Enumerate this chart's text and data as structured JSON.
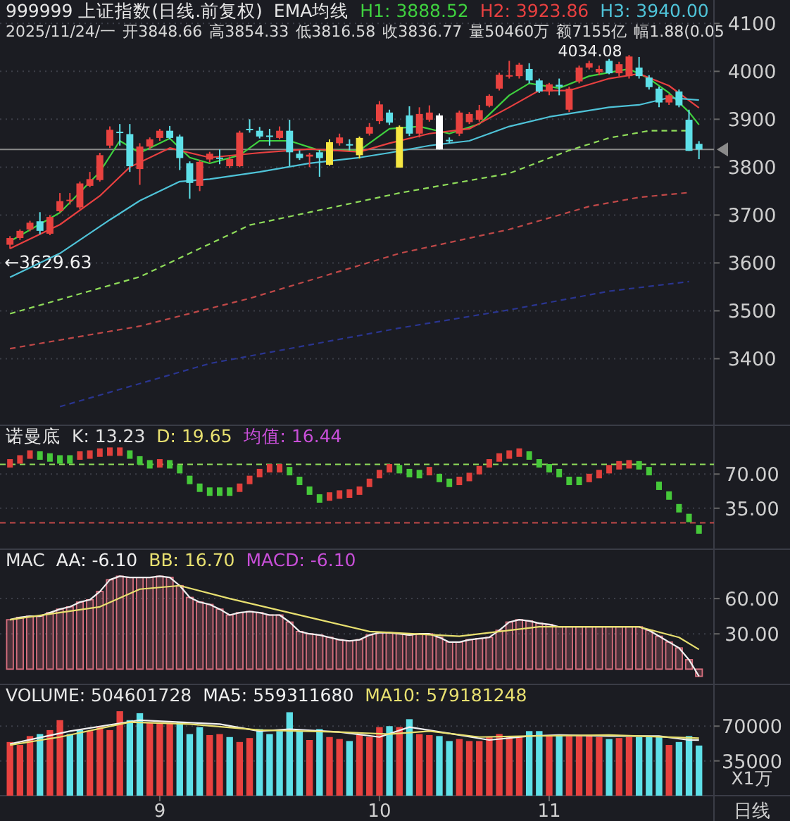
{
  "chart_data": [
    {
      "type": "candlestick",
      "title": "999999 上证指数(日线.前复权)",
      "subtitle": "EMA均线",
      "categories": [
        null,
        null,
        null,
        null,
        null,
        null,
        null,
        null,
        null,
        null,
        null,
        null,
        null,
        null,
        null,
        null,
        null,
        null,
        null,
        null,
        null,
        null,
        null,
        null,
        null,
        null,
        null,
        null,
        null,
        null,
        null,
        null,
        null,
        null,
        null,
        null,
        null,
        null,
        null,
        null,
        null,
        null,
        null,
        null,
        null,
        null,
        null,
        null,
        null,
        null,
        null,
        null,
        null,
        null,
        null,
        null,
        null,
        null,
        null,
        null,
        null,
        null,
        null,
        null,
        null,
        null,
        null,
        null,
        null,
        null
      ],
      "ohlc": [
        [
          3638,
          3656,
          3629.63,
          3652
        ],
        [
          3652,
          3670,
          3648,
          3667
        ],
        [
          3670,
          3688,
          3666,
          3684
        ],
        [
          3687,
          3706,
          3660,
          3667
        ],
        [
          3661,
          3700,
          3658,
          3696
        ],
        [
          3708,
          3746,
          3705,
          3729
        ],
        [
          3730,
          3746,
          3722,
          3732
        ],
        [
          3716,
          3770,
          3712,
          3766
        ],
        [
          3761,
          3790,
          3758,
          3775
        ],
        [
          3773,
          3830,
          3770,
          3825
        ],
        [
          3845,
          3885,
          3840,
          3878
        ],
        [
          3874,
          3890,
          3845,
          3872
        ],
        [
          3869,
          3890,
          3790,
          3802
        ],
        [
          3796,
          3850,
          3763,
          3843
        ],
        [
          3843,
          3862,
          3838,
          3858
        ],
        [
          3861,
          3880,
          3855,
          3876
        ],
        [
          3876,
          3886,
          3858,
          3861
        ],
        [
          3864,
          3868,
          3794,
          3819
        ],
        [
          3808,
          3812,
          3734,
          3767
        ],
        [
          3761,
          3815,
          3750,
          3811
        ],
        [
          3816,
          3832,
          3810,
          3828
        ],
        [
          3820,
          3837,
          3806,
          3819
        ],
        [
          3802,
          3822,
          3798,
          3817
        ],
        [
          3802,
          3876,
          3800,
          3872
        ],
        [
          3880,
          3900,
          3872,
          3878
        ],
        [
          3876,
          3884,
          3860,
          3864
        ],
        [
          3866,
          3880,
          3845,
          3864
        ],
        [
          3861,
          3885,
          3858,
          3876
        ],
        [
          3876,
          3899,
          3802,
          3831
        ],
        [
          3828,
          3835,
          3815,
          3819
        ],
        [
          3822,
          3830,
          3800,
          3826
        ],
        [
          3831,
          3836,
          3780,
          3819
        ],
        [
          3805,
          3858,
          3803,
          3852
        ],
        [
          3850,
          3870,
          3845,
          3862
        ],
        [
          3846,
          3858,
          3835,
          3848
        ],
        [
          3825,
          3864,
          3818,
          3861
        ],
        [
          3870,
          3892,
          3866,
          3884
        ],
        [
          3896,
          3938,
          3890,
          3931
        ],
        [
          3914,
          3920,
          3888,
          3893
        ],
        [
          3884,
          3887,
          3799,
          3799
        ],
        [
          3908,
          3927,
          3865,
          3870
        ],
        [
          3870,
          3925,
          3862,
          3911
        ],
        [
          3899,
          3929,
          3895,
          3914
        ],
        [
          3908,
          3912,
          3837,
          3837
        ],
        [
          3857,
          3862,
          3850,
          3855
        ],
        [
          3870,
          3918,
          3865,
          3914
        ],
        [
          3894,
          3915,
          3890,
          3911
        ],
        [
          3899,
          3930,
          3895,
          3919
        ],
        [
          3928,
          3952,
          3925,
          3949
        ],
        [
          3964,
          3997,
          3960,
          3993
        ],
        [
          3990,
          4022,
          3985,
          3992
        ],
        [
          3990,
          4018,
          3985,
          4014
        ],
        [
          4005,
          4017,
          3975,
          3981
        ],
        [
          3981,
          3985,
          3955,
          3958
        ],
        [
          3958,
          3976,
          3950,
          3973
        ],
        [
          3972,
          3985,
          3950,
          3968
        ],
        [
          3920,
          3968,
          3915,
          3964
        ],
        [
          3979,
          4012,
          3975,
          4008
        ],
        [
          4008,
          4022,
          4004,
          4017
        ],
        [
          3998,
          4012,
          3992,
          4005
        ],
        [
          4022,
          4026,
          3994,
          3996
        ],
        [
          3996,
          4020,
          3990,
          4015
        ],
        [
          3990,
          4034.08,
          3985,
          4031
        ],
        [
          4008,
          4030,
          3985,
          3990
        ],
        [
          3987,
          3992,
          3962,
          3967
        ],
        [
          3964,
          3968,
          3925,
          3935
        ],
        [
          3935,
          3952,
          3930,
          3950
        ],
        [
          3958,
          3962,
          3925,
          3929
        ],
        [
          3899,
          3920,
          3834,
          3834
        ],
        [
          3848.66,
          3854.33,
          3816.58,
          3836.77
        ]
      ],
      "colors": [
        "#e8423f",
        "#e8423f",
        "#e8423f",
        "#5ee0e8",
        "#e8423f",
        "#e8423f",
        "#e8423f",
        "#e8423f",
        "#e8423f",
        "#e8423f",
        "#e8423f",
        "#5ee0e8",
        "#5ee0e8",
        "#e8423f",
        "#e8423f",
        "#e8423f",
        "#5ee0e8",
        "#5ee0e8",
        "#5ee0e8",
        "#e8423f",
        "#e8423f",
        "#5ee0e8",
        "#e8423f",
        "#e8423f",
        "#5ee0e8",
        "#5ee0e8",
        "#5ee0e8",
        "#e8423f",
        "#5ee0e8",
        "#5ee0e8",
        "#e8423f",
        "#5ee0e8",
        "#f5e642",
        "#e8423f",
        "#5ee0e8",
        "#f5e642",
        "#e8423f",
        "#e8423f",
        "#5ee0e8",
        "#f5e642",
        "#5ee0e8",
        "#e8423f",
        "#e8423f",
        "#ffffff",
        "#5ee0e8",
        "#e8423f",
        "#e8423f",
        "#e8423f",
        "#e8423f",
        "#e8423f",
        "#e8423f",
        "#e8423f",
        "#5ee0e8",
        "#5ee0e8",
        "#e8423f",
        "#5ee0e8",
        "#e8423f",
        "#e8423f",
        "#e8423f",
        "#e8423f",
        "#5ee0e8",
        "#e8423f",
        "#e8423f",
        "#5ee0e8",
        "#5ee0e8",
        "#5ee0e8",
        "#e8423f",
        "#5ee0e8",
        "#5ee0e8",
        "#5ee0e8"
      ],
      "series": [
        {
          "name": "H1: 3888.52",
          "type": "line",
          "color": "#3fd13f",
          "values": [
            3645,
            null,
            null,
            null,
            null,
            3705,
            null,
            null,
            null,
            3790,
            null,
            3855,
            null,
            3830,
            null,
            null,
            3860,
            null,
            3820,
            null,
            3808,
            null,
            null,
            3825,
            null,
            3855,
            null,
            null,
            3855,
            null,
            null,
            3835,
            null,
            null,
            null,
            3835,
            null,
            null,
            3880,
            null,
            null,
            3885,
            null,
            null,
            3870,
            null,
            null,
            3890,
            null,
            null,
            3950,
            null,
            3975,
            null,
            null,
            3965,
            null,
            null,
            3990,
            null,
            null,
            null,
            4005,
            null,
            3985,
            null,
            3955,
            null,
            3915,
            3888.52
          ]
        },
        {
          "name": "H2: 3923.86",
          "type": "line",
          "color": "#e84040",
          "values": [
            3630,
            null,
            null,
            null,
            null,
            3680,
            null,
            null,
            null,
            3740,
            null,
            null,
            3800,
            null,
            null,
            null,
            3840,
            null,
            null,
            null,
            3820,
            null,
            null,
            null,
            null,
            3830,
            null,
            null,
            null,
            null,
            3838,
            null,
            null,
            null,
            null,
            3832,
            null,
            null,
            3850,
            null,
            null,
            null,
            3870,
            null,
            null,
            null,
            3880,
            null,
            null,
            null,
            3925,
            null,
            null,
            3960,
            null,
            null,
            3960,
            null,
            null,
            null,
            3985,
            null,
            null,
            3995,
            null,
            null,
            3970,
            null,
            null,
            3923.86
          ]
        },
        {
          "name": "H3: 3940.00",
          "type": "line",
          "color": "#4fc3d8",
          "values": [
            3570,
            null,
            null,
            null,
            null,
            3620,
            null,
            null,
            null,
            null,
            3690,
            null,
            null,
            3730,
            null,
            null,
            null,
            3770,
            null,
            null,
            3775,
            null,
            null,
            null,
            null,
            3790,
            null,
            null,
            null,
            null,
            3808,
            null,
            null,
            null,
            null,
            3820,
            null,
            null,
            3830,
            null,
            null,
            null,
            3845,
            null,
            null,
            null,
            3855,
            null,
            null,
            null,
            3885,
            null,
            null,
            null,
            3905,
            null,
            null,
            null,
            null,
            null,
            3925,
            null,
            null,
            3930,
            null,
            null,
            3945,
            null,
            null,
            3940.0
          ]
        },
        {
          "type": "line",
          "color": "#8fdc5a",
          "line_style": "dashed",
          "values": [
            3494,
            null,
            null,
            null,
            null,
            null,
            null,
            null,
            null,
            null,
            null,
            null,
            null,
            3571,
            null,
            null,
            null,
            null,
            null,
            null,
            null,
            null,
            null,
            null,
            3679,
            null,
            null,
            null,
            null,
            null,
            null,
            null,
            null,
            null,
            null,
            null,
            null,
            null,
            null,
            3746,
            null,
            null,
            null,
            null,
            null,
            null,
            null,
            null,
            null,
            null,
            3787,
            null,
            null,
            null,
            null,
            null,
            3835,
            null,
            null,
            null,
            3861,
            null,
            null,
            null,
            3876,
            null,
            null,
            null,
            3876,
            null
          ]
        },
        {
          "type": "line",
          "color": "#c04848",
          "line_style": "dashed",
          "values": [
            3421,
            null,
            null,
            null,
            null,
            null,
            null,
            null,
            null,
            null,
            null,
            null,
            null,
            3468,
            null,
            null,
            null,
            null,
            null,
            null,
            null,
            null,
            null,
            null,
            3526,
            null,
            null,
            null,
            null,
            null,
            null,
            null,
            null,
            null,
            null,
            null,
            null,
            null,
            null,
            3620,
            null,
            null,
            null,
            null,
            null,
            null,
            null,
            null,
            null,
            null,
            3670,
            null,
            null,
            null,
            null,
            null,
            null,
            null,
            3718,
            null,
            null,
            null,
            null,
            3737,
            null,
            null,
            null,
            null,
            3747,
            null
          ]
        },
        {
          "type": "line",
          "color": "#2a3590",
          "line_style": "dashed",
          "values": [
            null,
            null,
            null,
            null,
            null,
            3300,
            null,
            null,
            null,
            null,
            null,
            null,
            null,
            null,
            null,
            null,
            null,
            null,
            null,
            null,
            3390,
            null,
            null,
            null,
            null,
            null,
            null,
            null,
            null,
            null,
            null,
            null,
            null,
            null,
            null,
            null,
            null,
            null,
            null,
            3464,
            null,
            null,
            null,
            null,
            null,
            null,
            null,
            null,
            null,
            null,
            3502,
            null,
            null,
            null,
            null,
            null,
            null,
            null,
            null,
            null,
            3541,
            null,
            null,
            null,
            null,
            null,
            null,
            null,
            3561,
            null
          ]
        }
      ],
      "annotations": [
        "2025/11/24/一",
        "开3848.66",
        "高3854.33",
        "低3816.58",
        "收3836.77",
        "量50460万",
        "额7155亿",
        "幅1.88(0.05",
        "4034.08",
        "←3629.63"
      ],
      "ref_lines": [
        {
          "axis": "y",
          "value": 3836.77,
          "color": "#8a8a8a"
        }
      ],
      "ylim": [
        3261,
        4149
      ],
      "yticks": [
        3400,
        3500,
        3600,
        3700,
        3800,
        3900,
        4000,
        4100
      ],
      "grid": "y",
      "tick_labels": "y"
    },
    {
      "type": "scatter",
      "title": "诺曼底",
      "marker": "square",
      "categories": [
        null,
        null,
        null,
        null,
        null,
        null,
        null,
        null,
        null,
        null,
        null,
        null,
        null,
        null,
        null,
        null,
        null,
        null,
        null,
        null,
        null,
        null,
        null,
        null,
        null,
        null,
        null,
        null,
        null,
        null,
        null,
        null,
        null,
        null,
        null,
        null,
        null,
        null,
        null,
        null,
        null,
        null,
        null,
        null,
        null,
        null,
        null,
        null,
        null,
        null,
        null,
        null,
        null,
        null,
        null,
        null,
        null,
        null,
        null,
        null,
        null,
        null,
        null,
        null,
        null,
        null,
        null,
        null,
        null,
        null
      ],
      "values": [
        81,
        85,
        90,
        89,
        87,
        85,
        85,
        89,
        90,
        92,
        93,
        93,
        90,
        84,
        80,
        81,
        80,
        75,
        64,
        56,
        52,
        52,
        52,
        56,
        64,
        71,
        76,
        76,
        73,
        63,
        53,
        45,
        47,
        49,
        50,
        53,
        61,
        70,
        76,
        75,
        71,
        70,
        73,
        66,
        61,
        63,
        67,
        74,
        81,
        87,
        90,
        92,
        89,
        81,
        76,
        71,
        63,
        63,
        66,
        70,
        75,
        79,
        80,
        79,
        73,
        58,
        48,
        35,
        25,
        13.23
      ],
      "colors": [
        "#e0403c",
        "#e0403c",
        "#e0403c",
        "#46c83a",
        "#46c83a",
        "#46c83a",
        "#46c83a",
        "#e0403c",
        "#e0403c",
        "#e0403c",
        "#e0403c",
        "#e0403c",
        "#46c83a",
        "#46c83a",
        "#46c83a",
        "#e0403c",
        "#46c83a",
        "#46c83a",
        "#46c83a",
        "#46c83a",
        "#46c83a",
        "#46c83a",
        "#46c83a",
        "#e0403c",
        "#e0403c",
        "#e0403c",
        "#e0403c",
        "#e0403c",
        "#46c83a",
        "#46c83a",
        "#46c83a",
        "#46c83a",
        "#e0403c",
        "#e0403c",
        "#e0403c",
        "#e0403c",
        "#e0403c",
        "#e0403c",
        "#e0403c",
        "#46c83a",
        "#46c83a",
        "#46c83a",
        "#e0403c",
        "#46c83a",
        "#46c83a",
        "#e0403c",
        "#e0403c",
        "#e0403c",
        "#e0403c",
        "#e0403c",
        "#e0403c",
        "#e0403c",
        "#46c83a",
        "#46c83a",
        "#46c83a",
        "#46c83a",
        "#46c83a",
        "#46c83a",
        "#e0403c",
        "#e0403c",
        "#e0403c",
        "#e0403c",
        "#e0403c",
        "#46c83a",
        "#46c83a",
        "#46c83a",
        "#46c83a",
        "#46c83a",
        "#46c83a",
        "#46c83a"
      ],
      "annotations": [
        "K: 13.23",
        "D: 19.65",
        "均值: 16.44"
      ],
      "ref_lines": [
        {
          "axis": "y",
          "value": 80,
          "color": "#8fdc5a",
          "line_style": "dashed"
        },
        {
          "axis": "y",
          "value": 20,
          "color": "#c04848",
          "line_style": "dashed"
        }
      ],
      "ylim": [
        -7,
        120
      ],
      "yticks": [
        {
          "value": 70,
          "label": "70.00"
        },
        {
          "value": 35,
          "label": "35.00"
        }
      ],
      "grid": "y",
      "tick_labels": "y"
    },
    {
      "type": "bar",
      "title": "MAC",
      "categories": [
        null,
        null,
        null,
        null,
        null,
        null,
        null,
        null,
        null,
        null,
        null,
        null,
        null,
        null,
        null,
        null,
        null,
        null,
        null,
        null,
        null,
        null,
        null,
        null,
        null,
        null,
        null,
        null,
        null,
        null,
        null,
        null,
        null,
        null,
        null,
        null,
        null,
        null,
        null,
        null,
        null,
        null,
        null,
        null,
        null,
        null,
        null,
        null,
        null,
        null,
        null,
        null,
        null,
        null,
        null,
        null,
        null,
        null,
        null,
        null,
        null,
        null,
        null,
        null,
        null,
        null,
        null,
        null,
        null,
        null
      ],
      "series": [
        {
          "type": "bar",
          "color": "#d9707f",
          "values": [
            42,
            44,
            45,
            45,
            48,
            51,
            53,
            57,
            59,
            66,
            76,
            79,
            78,
            78,
            78,
            79,
            78,
            71,
            61,
            57,
            55,
            51,
            46,
            48,
            49,
            48,
            46,
            46,
            40,
            32,
            30,
            29,
            27,
            25,
            24,
            25,
            29,
            31,
            31,
            30,
            29,
            30,
            30,
            27,
            23,
            23,
            25,
            26,
            27,
            33,
            40,
            42,
            41,
            39,
            38,
            36,
            36,
            36,
            36,
            36,
            36,
            36,
            36,
            36,
            33,
            28,
            23,
            18,
            8,
            -6.1
          ]
        },
        {
          "name": "AA: -6.10",
          "type": "line",
          "color": "#f0f0f0",
          "values": [
            42,
            44,
            45,
            45,
            48,
            51,
            53,
            57,
            59,
            66,
            76,
            79,
            78,
            78,
            78,
            79,
            78,
            71,
            61,
            57,
            55,
            51,
            46,
            48,
            49,
            48,
            46,
            46,
            40,
            32,
            30,
            29,
            27,
            25,
            24,
            25,
            29,
            31,
            31,
            30,
            29,
            30,
            30,
            27,
            23,
            23,
            25,
            26,
            27,
            33,
            40,
            42,
            41,
            39,
            38,
            36,
            36,
            36,
            36,
            36,
            36,
            36,
            36,
            36,
            33,
            28,
            23,
            18,
            8,
            -6.1
          ]
        },
        {
          "name": "BB: 16.70",
          "type": "line",
          "color": "#e8e070",
          "values": [
            42,
            null,
            null,
            null,
            null,
            null,
            null,
            null,
            null,
            53,
            null,
            null,
            null,
            68,
            null,
            null,
            null,
            71,
            null,
            null,
            null,
            null,
            60,
            null,
            null,
            null,
            null,
            null,
            null,
            null,
            44,
            null,
            null,
            null,
            null,
            null,
            32,
            null,
            null,
            null,
            null,
            null,
            null,
            null,
            null,
            28,
            null,
            null,
            null,
            null,
            null,
            null,
            null,
            36,
            null,
            null,
            null,
            null,
            null,
            null,
            null,
            null,
            null,
            36,
            null,
            null,
            null,
            27,
            null,
            16.7
          ]
        }
      ],
      "annotations": [
        "MACD: -6.10"
      ],
      "ylim": [
        -13,
        102
      ],
      "yticks": [
        {
          "value": 60,
          "label": "60.00"
        },
        {
          "value": 30,
          "label": "30.00"
        }
      ],
      "grid": "y",
      "tick_labels": "y"
    },
    {
      "type": "bar",
      "title": "VOLUME: 504601728",
      "ylabel": "X1万",
      "categories": [
        null,
        null,
        null,
        null,
        null,
        null,
        null,
        null,
        null,
        null,
        null,
        null,
        null,
        null,
        null,
        "9",
        null,
        null,
        null,
        null,
        null,
        null,
        null,
        null,
        null,
        null,
        null,
        null,
        null,
        null,
        null,
        null,
        null,
        null,
        null,
        null,
        null,
        "10",
        null,
        null,
        null,
        null,
        null,
        null,
        null,
        null,
        null,
        null,
        null,
        null,
        null,
        null,
        null,
        null,
        "11",
        null,
        null,
        null,
        null,
        null,
        null,
        null,
        null,
        null,
        null,
        null,
        null,
        null,
        null,
        null
      ],
      "series": [
        {
          "type": "bar",
          "values": [
            54000,
            51000,
            60000,
            62000,
            66000,
            76000,
            62000,
            66000,
            65000,
            69000,
            66000,
            85000,
            76000,
            83000,
            73000,
            73000,
            73000,
            74000,
            62000,
            69000,
            61000,
            62000,
            59000,
            54000,
            58000,
            67000,
            62000,
            65000,
            84000,
            65000,
            56000,
            67000,
            59000,
            57000,
            55000,
            61000,
            59000,
            69000,
            70000,
            69000,
            77000,
            62000,
            61000,
            60000,
            55000,
            57000,
            55000,
            55000,
            59000,
            62000,
            59000,
            59000,
            65000,
            65000,
            60000,
            61000,
            60000,
            60000,
            60000,
            59000,
            57000,
            58000,
            59000,
            59000,
            59000,
            59000,
            51000,
            54000,
            60000,
            50460
          ],
          "colors": [
            "#e8423f",
            "#e8423f",
            "#e8423f",
            "#5ee0e8",
            "#e8423f",
            "#e8423f",
            "#5ee0e8",
            "#5ee0e8",
            "#e8423f",
            "#e8423f",
            "#e8423f",
            "#e8423f",
            "#5ee0e8",
            "#5ee0e8",
            "#e8423f",
            "#e8423f",
            "#e8423f",
            "#5ee0e8",
            "#5ee0e8",
            "#5ee0e8",
            "#e8423f",
            "#e8423f",
            "#5ee0e8",
            "#e8423f",
            "#e8423f",
            "#5ee0e8",
            "#5ee0e8",
            "#5ee0e8",
            "#5ee0e8",
            "#5ee0e8",
            "#e8423f",
            "#5ee0e8",
            "#e8423f",
            "#e8423f",
            "#5ee0e8",
            "#e8423f",
            "#e8423f",
            "#e8423f",
            "#5ee0e8",
            "#e8423f",
            "#5ee0e8",
            "#e8423f",
            "#e8423f",
            "#5ee0e8",
            "#5ee0e8",
            "#e8423f",
            "#e8423f",
            "#e8423f",
            "#e8423f",
            "#e8423f",
            "#e8423f",
            "#e8423f",
            "#5ee0e8",
            "#5ee0e8",
            "#e8423f",
            "#5ee0e8",
            "#e8423f",
            "#e8423f",
            "#e8423f",
            "#e8423f",
            "#5ee0e8",
            "#e8423f",
            "#e8423f",
            "#5ee0e8",
            "#5ee0e8",
            "#5ee0e8",
            "#e8423f",
            "#5ee0e8",
            "#5ee0e8",
            "#5ee0e8"
          ]
        },
        {
          "name": "MA5: 559311680",
          "type": "line",
          "color": "#f0f0f0",
          "values": [
            52000,
            null,
            null,
            null,
            null,
            null,
            65000,
            null,
            null,
            null,
            null,
            null,
            null,
            76000,
            null,
            null,
            null,
            74000,
            null,
            null,
            null,
            72000,
            null,
            null,
            null,
            65000,
            null,
            null,
            67000,
            null,
            null,
            null,
            null,
            64000,
            null,
            null,
            null,
            59000,
            null,
            null,
            69000,
            null,
            null,
            null,
            null,
            61000,
            null,
            null,
            56000,
            null,
            null,
            null,
            60000,
            null,
            null,
            61000,
            null,
            null,
            null,
            null,
            60000,
            null,
            null,
            null,
            null,
            60000,
            null,
            null,
            56000,
            55931
          ]
        },
        {
          "name": "MA10: 579181248",
          "type": "line",
          "color": "#e8e070",
          "values": [
            51000,
            null,
            null,
            null,
            null,
            59000,
            null,
            null,
            null,
            null,
            null,
            null,
            74000,
            null,
            null,
            null,
            null,
            null,
            72000,
            null,
            null,
            null,
            null,
            null,
            null,
            66000,
            null,
            null,
            null,
            null,
            null,
            null,
            null,
            64000,
            null,
            null,
            null,
            null,
            62000,
            null,
            null,
            null,
            65000,
            null,
            null,
            null,
            null,
            59000,
            null,
            null,
            null,
            null,
            60000,
            null,
            null,
            null,
            null,
            null,
            null,
            null,
            61000,
            null,
            null,
            null,
            null,
            null,
            null,
            null,
            null,
            57918
          ]
        }
      ],
      "annotations": [
        "日线"
      ],
      "ylim": [
        0,
        112000
      ],
      "yticks": [
        70000,
        35000
      ],
      "grid": "y"
    }
  ]
}
